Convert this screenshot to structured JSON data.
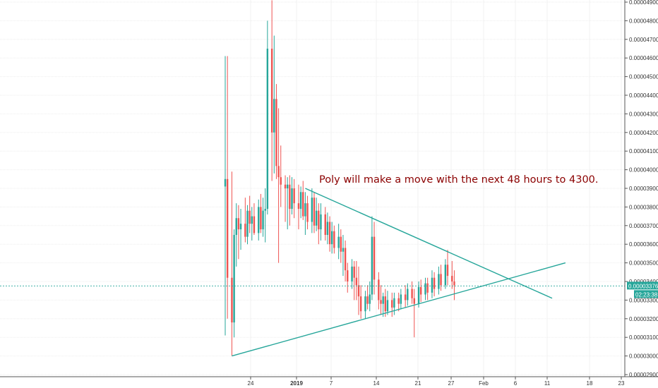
{
  "chart_data": {
    "type": "candlestick",
    "annotation": "Poly will make a move with the next 48 hours to 4300.",
    "price_axis": {
      "ticks": [
        "0.00004900",
        "0.00004800",
        "0.00004700",
        "0.00004600",
        "0.00004500",
        "0.00004400",
        "0.00004300",
        "0.00004200",
        "0.00004100",
        "0.00004000",
        "0.00003900",
        "0.00003800",
        "0.00003700",
        "0.00003600",
        "0.00003500",
        "0.00003400",
        "0.00003300",
        "0.00003200",
        "0.00003100",
        "0.00003000",
        "0.00002900"
      ],
      "ylim": [
        2.9e-05,
        4.9e-05
      ]
    },
    "time_axis": {
      "ticks": [
        "24",
        "2019",
        "7",
        "14",
        "21",
        "27",
        "Feb",
        "6",
        "11",
        "18",
        "23"
      ]
    },
    "current_price": {
      "label": "0.00003376",
      "value": 3.376e-05,
      "countdown": "02:23:38"
    },
    "trendlines": [
      {
        "name": "upper",
        "from": [
          "2019-01-01",
          3.9e-05
        ],
        "to": [
          "2019-02-07",
          3.31e-05
        ]
      },
      {
        "name": "lower",
        "from": [
          "2018-12-21",
          3e-05
        ],
        "to": [
          "2019-02-09",
          3.5e-05
        ]
      }
    ],
    "candles": [
      [
        "12-20",
        3.91e-05,
        4.61e-05,
        3.11e-05,
        3.95e-05
      ],
      [
        "12-20",
        3.95e-05,
        4.61e-05,
        3.2e-05,
        3.42e-05
      ],
      [
        "12-21",
        3.42e-05,
        3.99e-05,
        3e-05,
        3.18e-05
      ],
      [
        "12-21",
        3.18e-05,
        3.68e-05,
        3.1e-05,
        3.65e-05
      ],
      [
        "12-21",
        3.65e-05,
        3.82e-05,
        3.48e-05,
        3.74e-05
      ],
      [
        "12-22",
        3.74e-05,
        3.81e-05,
        3.52e-05,
        3.68e-05
      ],
      [
        "12-22",
        3.68e-05,
        3.79e-05,
        3.57e-05,
        3.71e-05
      ],
      [
        "12-23",
        3.71e-05,
        3.85e-05,
        3.61e-05,
        3.64e-05
      ],
      [
        "12-23",
        3.64e-05,
        3.81e-05,
        3.6e-05,
        3.78e-05
      ],
      [
        "12-23",
        3.78e-05,
        3.86e-05,
        3.66e-05,
        3.71e-05
      ],
      [
        "12-24",
        3.71e-05,
        3.8e-05,
        3.62e-05,
        3.75e-05
      ],
      [
        "12-24",
        3.75e-05,
        3.82e-05,
        3.65e-05,
        3.66e-05
      ],
      [
        "12-25",
        3.66e-05,
        3.84e-05,
        3.62e-05,
        3.8e-05
      ],
      [
        "12-25",
        3.8e-05,
        3.87e-05,
        3.66e-05,
        3.68e-05
      ],
      [
        "12-25",
        3.68e-05,
        3.85e-05,
        3.64e-05,
        3.78e-05
      ],
      [
        "12-26",
        3.78e-05,
        3.9e-05,
        3.61e-05,
        3.79e-05
      ],
      [
        "12-26",
        3.79e-05,
        4.8e-05,
        3.76e-05,
        4.65e-05
      ],
      [
        "12-27",
        4.65e-05,
        4.91e-05,
        3.94e-05,
        4.2e-05
      ],
      [
        "12-27",
        4.2e-05,
        4.72e-05,
        3.98e-05,
        4.38e-05
      ],
      [
        "12-27",
        4.38e-05,
        4.46e-05,
        3.95e-05,
        4.02e-05
      ],
      [
        "12-28",
        4.02e-05,
        4.33e-05,
        3.5e-05,
        3.96e-05
      ],
      [
        "12-28",
        3.96e-05,
        4.13e-05,
        3.8e-05,
        3.92e-05
      ],
      [
        "12-29",
        3.92e-05,
        3.97e-05,
        3.72e-05,
        3.9e-05
      ],
      [
        "12-29",
        3.9e-05,
        3.96e-05,
        3.68e-05,
        3.92e-05
      ],
      [
        "12-29",
        3.92e-05,
        3.97e-05,
        3.7e-05,
        3.79e-05
      ],
      [
        "12-30",
        3.79e-05,
        3.96e-05,
        3.76e-05,
        3.9e-05
      ],
      [
        "12-30",
        3.9e-05,
        3.95e-05,
        3.74e-05,
        3.82e-05
      ],
      [
        "12-31",
        3.82e-05,
        3.92e-05,
        3.68e-05,
        3.79e-05
      ],
      [
        "12-31",
        3.79e-05,
        3.91e-05,
        3.74e-05,
        3.88e-05
      ],
      [
        "12-31",
        3.88e-05,
        3.94e-05,
        3.73e-05,
        3.75e-05
      ],
      [
        "01-01",
        3.75e-05,
        3.88e-05,
        3.65e-05,
        3.82e-05
      ],
      [
        "01-01",
        3.82e-05,
        3.86e-05,
        3.68e-05,
        3.72e-05
      ],
      [
        "01-02",
        3.72e-05,
        3.9e-05,
        3.66e-05,
        3.85e-05
      ],
      [
        "01-02",
        3.85e-05,
        3.88e-05,
        3.66e-05,
        3.7e-05
      ],
      [
        "01-02",
        3.7e-05,
        3.85e-05,
        3.67e-05,
        3.78e-05
      ],
      [
        "01-03",
        3.78e-05,
        3.82e-05,
        3.6e-05,
        3.68e-05
      ],
      [
        "01-03",
        3.68e-05,
        3.82e-05,
        3.62e-05,
        3.76e-05
      ],
      [
        "01-04",
        3.76e-05,
        3.8e-05,
        3.62e-05,
        3.65e-05
      ],
      [
        "01-04",
        3.65e-05,
        3.77e-05,
        3.6e-05,
        3.72e-05
      ],
      [
        "01-04",
        3.72e-05,
        3.75e-05,
        3.56e-05,
        3.6e-05
      ],
      [
        "01-05",
        3.6e-05,
        3.72e-05,
        3.55e-05,
        3.67e-05
      ],
      [
        "01-05",
        3.67e-05,
        3.7e-05,
        3.55e-05,
        3.58e-05
      ],
      [
        "01-06",
        3.58e-05,
        3.71e-05,
        3.52e-05,
        3.64e-05
      ],
      [
        "01-06",
        3.64e-05,
        3.68e-05,
        3.5e-05,
        3.56e-05
      ],
      [
        "01-06",
        3.56e-05,
        3.65e-05,
        3.43e-05,
        3.58e-05
      ],
      [
        "01-07",
        3.58e-05,
        3.62e-05,
        3.4e-05,
        3.46e-05
      ],
      [
        "01-07",
        3.46e-05,
        3.5e-05,
        3.34e-05,
        3.4e-05
      ],
      [
        "01-08",
        3.4e-05,
        3.52e-05,
        3.36e-05,
        3.48e-05
      ],
      [
        "01-08",
        3.48e-05,
        3.51e-05,
        3.3e-05,
        3.42e-05
      ],
      [
        "01-08",
        3.42e-05,
        3.51e-05,
        3.3e-05,
        3.38e-05
      ],
      [
        "01-09",
        3.38e-05,
        3.48e-05,
        3.22e-05,
        3.32e-05
      ],
      [
        "01-09",
        3.32e-05,
        3.38e-05,
        3.2e-05,
        3.24e-05
      ],
      [
        "01-10",
        3.24e-05,
        3.35e-05,
        3.2e-05,
        3.32e-05
      ],
      [
        "01-10",
        3.32e-05,
        3.38e-05,
        3.25e-05,
        3.28e-05
      ],
      [
        "01-10",
        3.28e-05,
        3.4e-05,
        3.24e-05,
        3.33e-05
      ],
      [
        "01-11",
        3.33e-05,
        3.75e-05,
        3.3e-05,
        3.64e-05
      ],
      [
        "01-11",
        3.64e-05,
        3.72e-05,
        3.33e-05,
        3.41e-05
      ],
      [
        "01-12",
        3.41e-05,
        3.45e-05,
        3.25e-05,
        3.3e-05
      ],
      [
        "01-12",
        3.3e-05,
        3.38e-05,
        3.22e-05,
        3.28e-05
      ],
      [
        "01-12",
        3.28e-05,
        3.34e-05,
        3.21e-05,
        3.32e-05
      ],
      [
        "01-13",
        3.32e-05,
        3.36e-05,
        3.21e-05,
        3.24e-05
      ],
      [
        "01-13",
        3.24e-05,
        3.35e-05,
        3.22e-05,
        3.3e-05
      ],
      [
        "01-14",
        3.3e-05,
        3.34e-05,
        3.21e-05,
        3.26e-05
      ],
      [
        "01-14",
        3.26e-05,
        3.34e-05,
        3.22e-05,
        3.31e-05
      ],
      [
        "01-15",
        3.31e-05,
        3.34e-05,
        3.24e-05,
        3.28e-05
      ],
      [
        "01-15",
        3.28e-05,
        3.36e-05,
        3.25e-05,
        3.33e-05
      ],
      [
        "01-16",
        3.33e-05,
        3.38e-05,
        3.26e-05,
        3.3e-05
      ],
      [
        "01-16",
        3.3e-05,
        3.39e-05,
        3.27e-05,
        3.36e-05
      ],
      [
        "01-17",
        3.36e-05,
        3.4e-05,
        3.28e-05,
        3.31e-05
      ],
      [
        "01-17",
        3.31e-05,
        3.36e-05,
        3.1e-05,
        3.28e-05
      ],
      [
        "01-18",
        3.28e-05,
        3.4e-05,
        3.26e-05,
        3.37e-05
      ],
      [
        "01-18",
        3.37e-05,
        3.41e-05,
        3.29e-05,
        3.33e-05
      ],
      [
        "01-19",
        3.33e-05,
        3.42e-05,
        3.3e-05,
        3.39e-05
      ],
      [
        "01-19",
        3.39e-05,
        3.42e-05,
        3.3e-05,
        3.34e-05
      ],
      [
        "01-20",
        3.34e-05,
        3.46e-05,
        3.31e-05,
        3.42e-05
      ],
      [
        "01-20",
        3.42e-05,
        3.45e-05,
        3.32e-05,
        3.36e-05
      ],
      [
        "01-21",
        3.36e-05,
        3.48e-05,
        3.33e-05,
        3.44e-05
      ],
      [
        "01-21",
        3.44e-05,
        3.49e-05,
        3.35e-05,
        3.38e-05
      ],
      [
        "01-22",
        3.38e-05,
        3.52e-05,
        3.36e-05,
        3.49e-05
      ],
      [
        "01-22",
        3.49e-05,
        3.57e-05,
        3.38e-05,
        3.43e-05
      ],
      [
        "01-23",
        3.43e-05,
        3.51e-05,
        3.36e-05,
        3.4e-05
      ],
      [
        "01-23",
        3.4e-05,
        3.46e-05,
        3.3e-05,
        3.38e-05
      ]
    ]
  }
}
